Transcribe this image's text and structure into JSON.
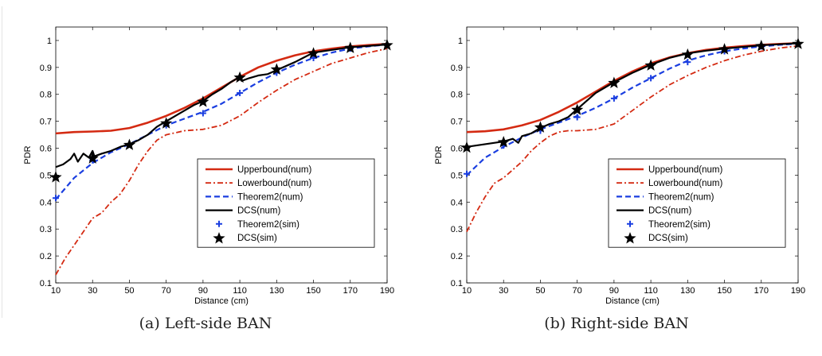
{
  "figure": {
    "captions": [
      "(a) Left-side BAN",
      "(b) Right-side BAN"
    ]
  },
  "chart_data": [
    {
      "type": "line",
      "title": "",
      "caption": "(a) Left-side BAN",
      "xlabel": "Distance (cm)",
      "ylabel": "PDR",
      "xlim": [
        10,
        190
      ],
      "ylim": [
        0.1,
        1.05
      ],
      "xticks": [
        10,
        30,
        50,
        70,
        90,
        110,
        130,
        150,
        170,
        190
      ],
      "yticks": [
        0.1,
        0.2,
        0.3,
        0.4,
        0.5,
        0.6,
        0.7,
        0.8,
        0.9,
        1
      ],
      "grid": false,
      "legend": "lower-right",
      "colors": {
        "upperbound": "#d42a12",
        "lowerbound": "#d42a12",
        "theorem2": "#1a3ee0",
        "dcs": "#000000"
      },
      "series": [
        {
          "name": "Upperbound(num)",
          "style": "solid-red",
          "x": [
            10,
            20,
            30,
            40,
            50,
            60,
            70,
            80,
            90,
            100,
            110,
            120,
            130,
            140,
            150,
            160,
            170,
            180,
            190
          ],
          "y": [
            0.655,
            0.66,
            0.662,
            0.665,
            0.675,
            0.695,
            0.72,
            0.75,
            0.785,
            0.825,
            0.865,
            0.9,
            0.925,
            0.945,
            0.96,
            0.97,
            0.978,
            0.983,
            0.987
          ]
        },
        {
          "name": "Lowerbound(num)",
          "style": "dashdot-red",
          "x": [
            10,
            15,
            20,
            25,
            30,
            35,
            40,
            45,
            50,
            55,
            60,
            65,
            70,
            80,
            90,
            100,
            110,
            120,
            130,
            140,
            150,
            160,
            170,
            180,
            190
          ],
          "y": [
            0.13,
            0.19,
            0.24,
            0.29,
            0.34,
            0.36,
            0.4,
            0.43,
            0.48,
            0.54,
            0.59,
            0.63,
            0.65,
            0.665,
            0.67,
            0.685,
            0.72,
            0.77,
            0.815,
            0.855,
            0.885,
            0.915,
            0.935,
            0.955,
            0.97
          ]
        },
        {
          "name": "Theorem2(num)",
          "style": "dashed-blue",
          "x": [
            10,
            20,
            30,
            40,
            50,
            60,
            70,
            80,
            90,
            100,
            110,
            120,
            130,
            140,
            150,
            160,
            170,
            180,
            190
          ],
          "y": [
            0.41,
            0.49,
            0.545,
            0.585,
            0.615,
            0.65,
            0.685,
            0.71,
            0.735,
            0.765,
            0.805,
            0.845,
            0.88,
            0.91,
            0.935,
            0.955,
            0.97,
            0.978,
            0.985
          ]
        },
        {
          "name": "DCS(num)",
          "style": "solid-black",
          "x": [
            10,
            14,
            18,
            20,
            22,
            25,
            28,
            30,
            31,
            35,
            40,
            45,
            50,
            55,
            60,
            65,
            70,
            75,
            80,
            85,
            90,
            95,
            100,
            105,
            110,
            111,
            115,
            120,
            125,
            130,
            140,
            150,
            160,
            170,
            180,
            190
          ],
          "y": [
            0.53,
            0.54,
            0.56,
            0.58,
            0.55,
            0.58,
            0.565,
            0.59,
            0.57,
            0.58,
            0.59,
            0.605,
            0.615,
            0.63,
            0.65,
            0.68,
            0.7,
            0.72,
            0.74,
            0.76,
            0.775,
            0.8,
            0.82,
            0.845,
            0.865,
            0.85,
            0.86,
            0.87,
            0.875,
            0.89,
            0.92,
            0.955,
            0.965,
            0.975,
            0.98,
            0.985
          ]
        },
        {
          "name": "Theorem2(sim)",
          "style": "plus-blue",
          "x": [
            10,
            30,
            50,
            70,
            90,
            110,
            130,
            150,
            170,
            190
          ],
          "y": [
            0.415,
            0.555,
            0.615,
            0.685,
            0.73,
            0.805,
            0.88,
            0.935,
            0.97,
            0.985
          ]
        },
        {
          "name": "DCS(sim)",
          "style": "star-black",
          "x": [
            10,
            30,
            50,
            70,
            90,
            110,
            130,
            150,
            170,
            190
          ],
          "y": [
            0.495,
            0.565,
            0.615,
            0.695,
            0.775,
            0.865,
            0.895,
            0.955,
            0.975,
            0.985
          ]
        }
      ]
    },
    {
      "type": "line",
      "title": "",
      "caption": "(b) Right-side BAN",
      "xlabel": "Distance (cm)",
      "ylabel": "PDR",
      "xlim": [
        10,
        190
      ],
      "ylim": [
        0.1,
        1.05
      ],
      "xticks": [
        10,
        30,
        50,
        70,
        90,
        110,
        130,
        150,
        170,
        190
      ],
      "yticks": [
        0.1,
        0.2,
        0.3,
        0.4,
        0.5,
        0.6,
        0.7,
        0.8,
        0.9,
        1
      ],
      "grid": false,
      "legend": "lower-right",
      "colors": {
        "upperbound": "#d42a12",
        "lowerbound": "#d42a12",
        "theorem2": "#1a3ee0",
        "dcs": "#000000"
      },
      "series": [
        {
          "name": "Upperbound(num)",
          "style": "solid-red",
          "x": [
            10,
            20,
            30,
            40,
            50,
            60,
            70,
            80,
            90,
            100,
            110,
            120,
            130,
            140,
            150,
            160,
            170,
            180,
            190
          ],
          "y": [
            0.66,
            0.663,
            0.67,
            0.685,
            0.705,
            0.735,
            0.77,
            0.81,
            0.85,
            0.885,
            0.915,
            0.937,
            0.953,
            0.965,
            0.973,
            0.979,
            0.984,
            0.987,
            0.99
          ]
        },
        {
          "name": "Lowerbound(num)",
          "style": "dashdot-red",
          "x": [
            10,
            15,
            20,
            25,
            30,
            35,
            40,
            45,
            50,
            55,
            60,
            65,
            70,
            80,
            90,
            100,
            110,
            120,
            130,
            140,
            150,
            160,
            170,
            180,
            190
          ],
          "y": [
            0.29,
            0.36,
            0.42,
            0.47,
            0.49,
            0.52,
            0.55,
            0.59,
            0.62,
            0.645,
            0.66,
            0.665,
            0.665,
            0.67,
            0.69,
            0.74,
            0.79,
            0.835,
            0.87,
            0.9,
            0.925,
            0.945,
            0.96,
            0.972,
            0.98
          ]
        },
        {
          "name": "Theorem2(num)",
          "style": "dashed-blue",
          "x": [
            10,
            20,
            30,
            40,
            50,
            60,
            70,
            80,
            90,
            100,
            110,
            120,
            130,
            140,
            150,
            160,
            170,
            180,
            190
          ],
          "y": [
            0.5,
            0.565,
            0.605,
            0.64,
            0.67,
            0.695,
            0.72,
            0.75,
            0.785,
            0.825,
            0.86,
            0.895,
            0.925,
            0.945,
            0.96,
            0.97,
            0.978,
            0.984,
            0.988
          ]
        },
        {
          "name": "DCS(num)",
          "style": "solid-black",
          "x": [
            10,
            20,
            30,
            35,
            38,
            40,
            45,
            50,
            55,
            60,
            65,
            70,
            75,
            80,
            85,
            90,
            100,
            110,
            120,
            130,
            140,
            150,
            160,
            170,
            180,
            190
          ],
          "y": [
            0.605,
            0.615,
            0.625,
            0.635,
            0.62,
            0.645,
            0.655,
            0.675,
            0.69,
            0.7,
            0.715,
            0.745,
            0.775,
            0.805,
            0.825,
            0.845,
            0.88,
            0.91,
            0.935,
            0.952,
            0.962,
            0.97,
            0.976,
            0.982,
            0.986,
            0.99
          ]
        },
        {
          "name": "Theorem2(sim)",
          "style": "plus-blue",
          "x": [
            10,
            30,
            50,
            70,
            90,
            110,
            130,
            150,
            170,
            190
          ],
          "y": [
            0.505,
            0.61,
            0.665,
            0.715,
            0.785,
            0.86,
            0.92,
            0.96,
            0.978,
            0.988
          ]
        },
        {
          "name": "DCS(sim)",
          "style": "star-black",
          "x": [
            10,
            30,
            50,
            70,
            90,
            110,
            130,
            150,
            170,
            190
          ],
          "y": [
            0.605,
            0.625,
            0.68,
            0.745,
            0.845,
            0.91,
            0.95,
            0.97,
            0.982,
            0.99
          ]
        }
      ]
    }
  ]
}
